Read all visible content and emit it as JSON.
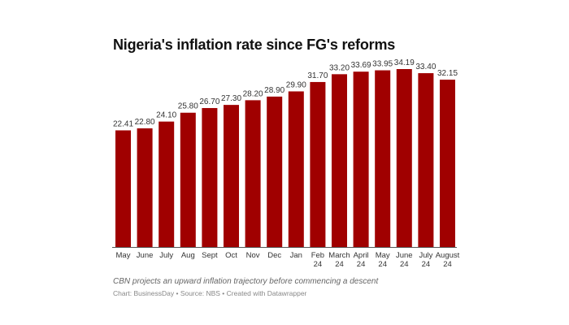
{
  "chart_data": {
    "type": "bar",
    "title": "Nigeria's inflation rate since FG's reforms",
    "categories": [
      [
        "May"
      ],
      [
        "June"
      ],
      [
        "July"
      ],
      [
        "Aug"
      ],
      [
        "Sept"
      ],
      [
        "Oct"
      ],
      [
        "Nov"
      ],
      [
        "Dec"
      ],
      [
        "Jan"
      ],
      [
        "Feb",
        "24"
      ],
      [
        "March",
        "24"
      ],
      [
        "April",
        "24"
      ],
      [
        "May",
        "24"
      ],
      [
        "June",
        "24"
      ],
      [
        "July",
        "24"
      ],
      [
        "August",
        "24"
      ]
    ],
    "values": [
      22.41,
      22.8,
      24.1,
      25.8,
      26.7,
      27.3,
      28.2,
      28.9,
      29.9,
      31.7,
      33.2,
      33.69,
      33.95,
      34.19,
      33.4,
      32.15
    ],
    "value_labels": [
      "22.41",
      "22.80",
      "24.10",
      "25.80",
      "26.70",
      "27.30",
      "28.20",
      "28.90",
      "29.90",
      "31.70",
      "33.20",
      "33.69",
      "33.95",
      "34.19",
      "33.40",
      "32.15"
    ],
    "xlabel": "",
    "ylabel": "",
    "ylim": [
      0,
      34.19
    ],
    "grid": false,
    "bar_color": "#a00000"
  },
  "caption": "CBN projects an upward inflation trajectory before commencing a descent",
  "source": "Chart: BusinessDay • Source: NBS • Created with Datawrapper"
}
